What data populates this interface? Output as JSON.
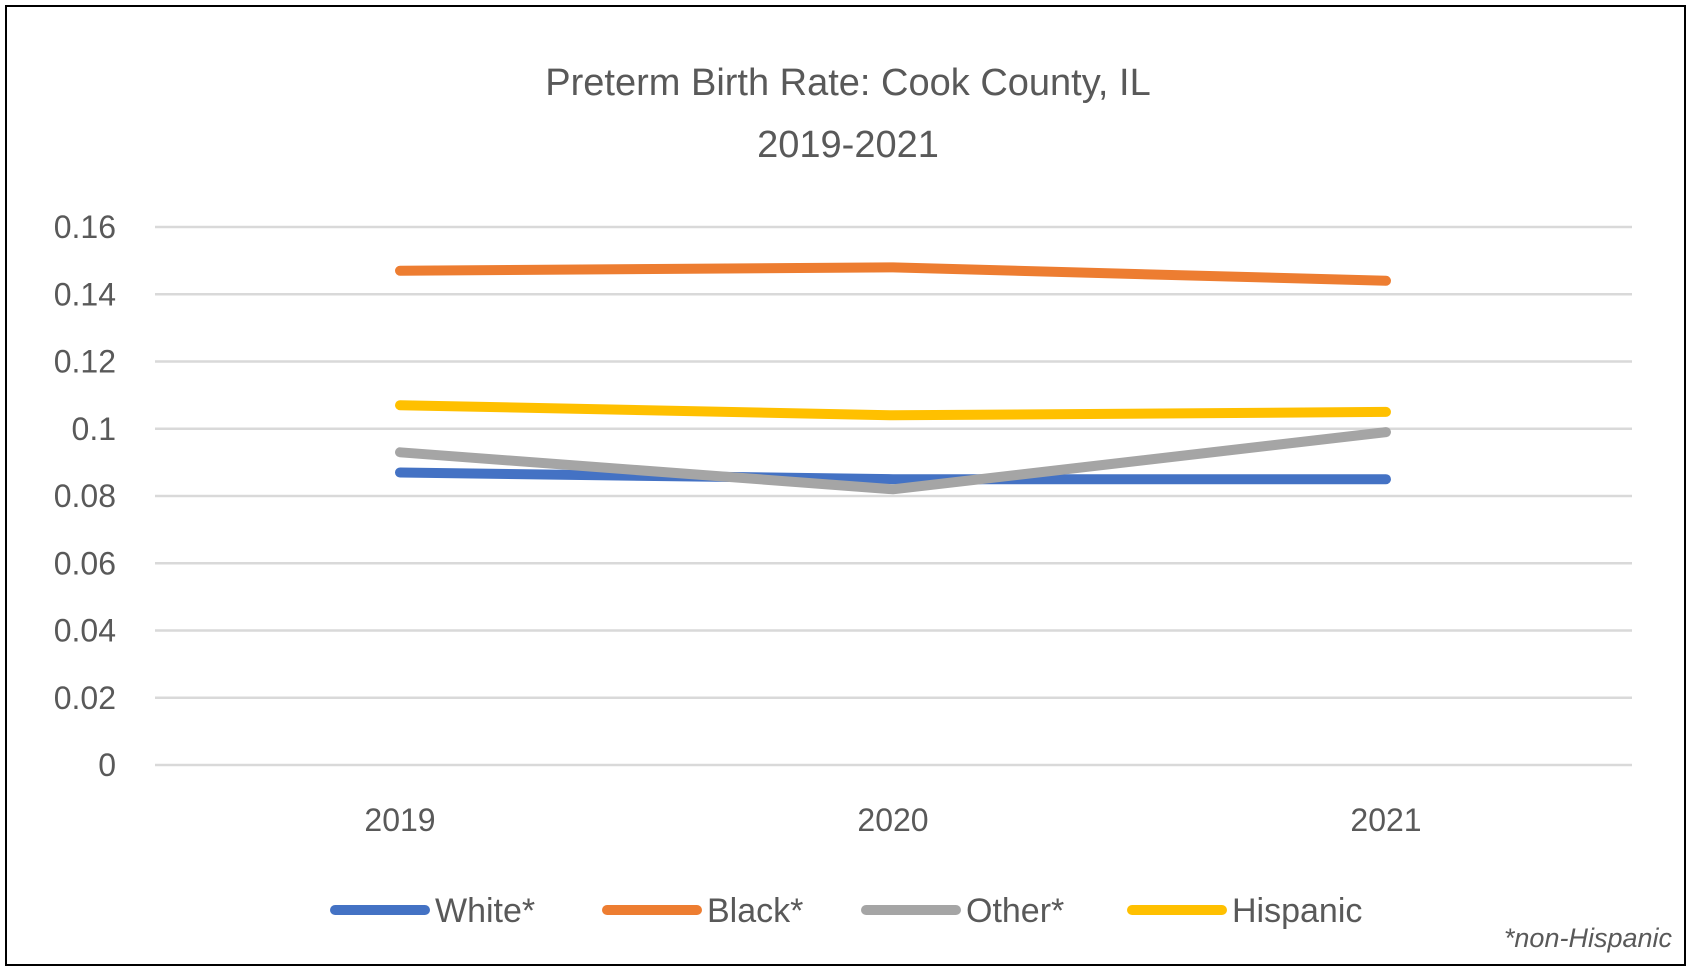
{
  "chart_data": {
    "type": "line",
    "title": "Preterm Birth Rate: Cook County, IL",
    "subtitle": "2019-2021",
    "categories": [
      "2019",
      "2020",
      "2021"
    ],
    "yticks": [
      "0",
      "0.02",
      "0.04",
      "0.06",
      "0.08",
      "0.1",
      "0.12",
      "0.14",
      "0.16"
    ],
    "ylim": [
      0,
      0.16
    ],
    "grid": true,
    "legend_position": "bottom",
    "footnote": "*non-Hispanic",
    "series": [
      {
        "name": "White*",
        "color": "#4472C4",
        "values": [
          0.087,
          0.085,
          0.085
        ]
      },
      {
        "name": "Black*",
        "color": "#ED7D31",
        "values": [
          0.147,
          0.148,
          0.144
        ]
      },
      {
        "name": "Other*",
        "color": "#A5A5A5",
        "values": [
          0.093,
          0.082,
          0.099
        ]
      },
      {
        "name": "Hispanic",
        "color": "#FFC000",
        "values": [
          0.107,
          0.104,
          0.105
        ]
      }
    ]
  }
}
